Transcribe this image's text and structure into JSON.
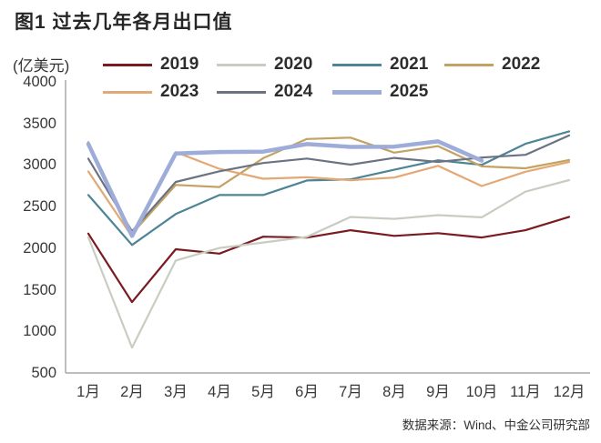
{
  "figure": {
    "title": "图1  过去几年各月出口值",
    "unit_label": "(亿美元)",
    "source": "数据来源：Wind、中金公司研究部"
  },
  "chart_data": {
    "type": "line",
    "title": "过去几年各月出口值",
    "ylabel": "亿美元",
    "xlabel": "",
    "categories": [
      "1月",
      "2月",
      "3月",
      "4月",
      "5月",
      "6月",
      "7月",
      "8月",
      "9月",
      "10月",
      "11月",
      "12月"
    ],
    "y_ticks": [
      4000,
      3500,
      3000,
      2500,
      2000,
      1500,
      1000,
      500
    ],
    "ylim": [
      500,
      4000
    ],
    "grid": false,
    "legend_position": "top",
    "axis_color": "#a8a8a8",
    "series": [
      {
        "name": "2019",
        "color": "#7a1b21",
        "thick": false,
        "values": [
          2176,
          1352,
          1987,
          1935,
          2138,
          2128,
          2216,
          2148,
          2181,
          2129,
          2216,
          2377
        ]
      },
      {
        "name": "2020",
        "color": "#c8ccc1",
        "thick": false,
        "values": [
          2131,
          805,
          1852,
          2003,
          2068,
          2136,
          2376,
          2353,
          2398,
          2371,
          2680,
          2819
        ]
      },
      {
        "name": "2021",
        "color": "#4d8496",
        "thick": false,
        "values": [
          2639,
          2039,
          2411,
          2639,
          2639,
          2814,
          2827,
          2943,
          3057,
          3002,
          3255,
          3405
        ]
      },
      {
        "name": "2022",
        "color": "#c3a263",
        "thick": false,
        "values": [
          3276,
          2175,
          2761,
          2736,
          3082,
          3313,
          3329,
          3149,
          3228,
          2984,
          2961,
          3061
        ]
      },
      {
        "name": "2023",
        "color": "#e3a873",
        "thick": false,
        "values": [
          2923,
          2140,
          3156,
          2954,
          2835,
          2853,
          2818,
          2849,
          2991,
          2748,
          2919,
          3036
        ]
      },
      {
        "name": "2024",
        "color": "#6b7383",
        "thick": false,
        "values": [
          3077,
          2203,
          2797,
          2925,
          3024,
          3078,
          3005,
          3086,
          3037,
          3090,
          3123,
          3356
        ]
      },
      {
        "name": "2025",
        "color": "#9dacd9",
        "thick": true,
        "values": [
          3252,
          2147,
          3139,
          3157,
          3161,
          3252,
          3218,
          3221,
          3285,
          3053
        ]
      }
    ]
  }
}
